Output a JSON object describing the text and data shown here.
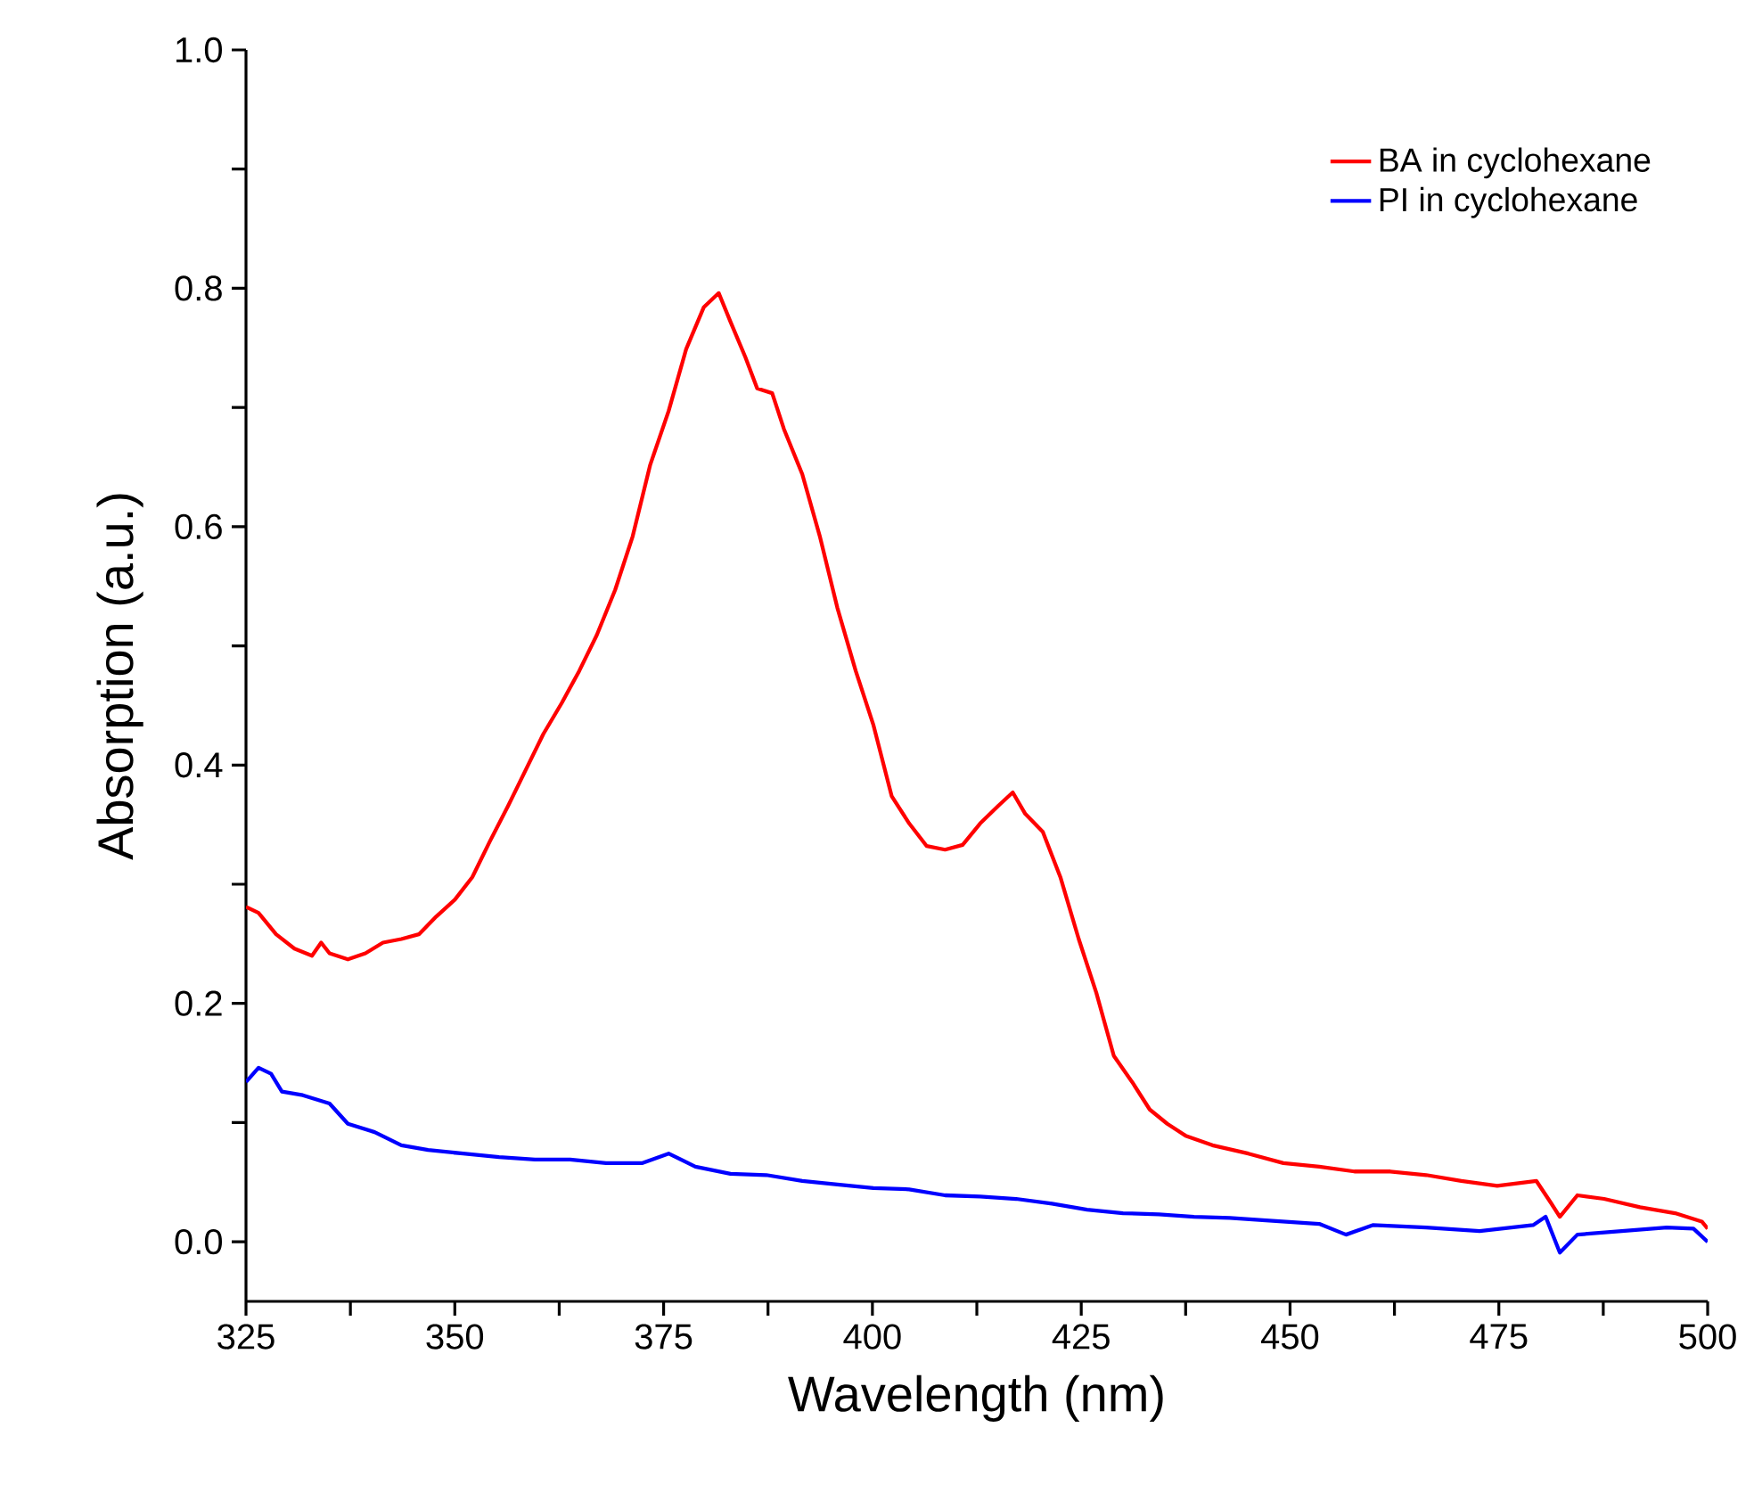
{
  "chart_data": {
    "type": "line",
    "xlabel": "Wavelength (nm)",
    "ylabel": "Absorption (a.u.)",
    "xlim": [
      325,
      500
    ],
    "ylim": [
      -0.05,
      1.0
    ],
    "xticks": [
      325,
      {
        "value": 337.5,
        "label": null
      },
      350,
      {
        "value": 362.5,
        "label": null
      },
      375,
      {
        "value": 387.5,
        "label": null
      },
      400,
      {
        "value": 412.5,
        "label": null
      },
      425,
      {
        "value": 437.5,
        "label": null
      },
      450,
      {
        "value": 462.5,
        "label": null
      },
      475,
      {
        "value": 487.5,
        "label": null
      },
      500
    ],
    "yticks": [
      {
        "value": 0,
        "label": "0.0"
      },
      {
        "value": 0.1,
        "label": null
      },
      {
        "value": 0.2,
        "label": "0.2"
      },
      {
        "value": 0.3,
        "label": null
      },
      {
        "value": 0.4,
        "label": "0.4"
      },
      {
        "value": 0.5,
        "label": null
      },
      {
        "value": 0.6,
        "label": "0.6"
      },
      {
        "value": 0.7,
        "label": null
      },
      {
        "value": 0.8,
        "label": "0.8"
      },
      {
        "value": 0.9,
        "label": null
      },
      {
        "value": 1.0,
        "label": "1.0"
      }
    ],
    "legend": "top right",
    "grid": false,
    "marker": "none",
    "line_style": "solid",
    "series": [
      {
        "name": "BA in cyclohexane",
        "color": "#ff0000",
        "x": [
          325,
          326.5,
          328.6,
          330.8,
          332.9,
          334,
          335,
          337.2,
          339.3,
          341.4,
          343.6,
          345.7,
          347.8,
          350,
          352.1,
          354.2,
          356.4,
          358.5,
          360.6,
          362.8,
          364.9,
          367,
          369.2,
          371.3,
          373.4,
          375.6,
          377.7,
          379.8,
          381.6,
          383,
          384.8,
          386.2,
          388,
          389.4,
          391.6,
          393.7,
          395.8,
          398,
          400.1,
          402.3,
          404.4,
          406.5,
          408.7,
          410.8,
          412.9,
          415.1,
          416.8,
          418.3,
          420.4,
          422.5,
          424.7,
          426.8,
          428.9,
          431.1,
          433.2,
          435.3,
          437.5,
          440.7,
          445,
          449.2,
          453.5,
          457.7,
          462,
          466.3,
          470.5,
          474.8,
          479.5,
          481.2,
          482.3,
          484.4,
          487.6,
          491.9,
          496.1,
          499.3,
          500
        ],
        "values": [
          0.281,
          0.276,
          0.258,
          0.246,
          0.24,
          0.251,
          0.242,
          0.237,
          0.242,
          0.251,
          0.254,
          0.258,
          0.273,
          0.287,
          0.306,
          0.336,
          0.366,
          0.396,
          0.426,
          0.452,
          0.479,
          0.509,
          0.547,
          0.592,
          0.652,
          0.697,
          0.749,
          0.784,
          0.796,
          0.772,
          0.742,
          0.716,
          0.712,
          0.682,
          0.644,
          0.592,
          0.532,
          0.479,
          0.434,
          0.374,
          0.351,
          0.332,
          0.329,
          0.333,
          0.351,
          0.366,
          0.377,
          0.359,
          0.344,
          0.306,
          0.254,
          0.209,
          0.156,
          0.134,
          0.111,
          0.099,
          0.089,
          0.081,
          0.074,
          0.066,
          0.063,
          0.059,
          0.059,
          0.056,
          0.051,
          0.047,
          0.051,
          0.033,
          0.021,
          0.039,
          0.036,
          0.029,
          0.024,
          0.017,
          0.011
        ]
      },
      {
        "name": "PI in cyclohexane",
        "color": "#0000ff",
        "x": [
          325,
          326.5,
          328,
          329.3,
          331.8,
          335,
          337.2,
          340.4,
          343.6,
          346.8,
          351,
          355.3,
          359.6,
          363.8,
          368.1,
          372.4,
          375.6,
          378.8,
          383,
          387.3,
          391.6,
          395.8,
          400.1,
          404.4,
          408.7,
          412.9,
          417.2,
          421.5,
          425.7,
          430,
          434.3,
          438.5,
          442.8,
          447.1,
          453.5,
          456.7,
          459.9,
          466.3,
          472.7,
          479.1,
          480.6,
          482.3,
          484.4,
          489.7,
          495.1,
          498.3,
          500
        ],
        "values": [
          0.134,
          0.146,
          0.141,
          0.126,
          0.123,
          0.116,
          0.099,
          0.092,
          0.081,
          0.077,
          0.074,
          0.071,
          0.069,
          0.069,
          0.066,
          0.066,
          0.074,
          0.063,
          0.057,
          0.056,
          0.051,
          0.048,
          0.045,
          0.044,
          0.039,
          0.038,
          0.036,
          0.032,
          0.027,
          0.024,
          0.023,
          0.021,
          0.02,
          0.018,
          0.015,
          0.006,
          0.014,
          0.012,
          0.009,
          0.014,
          0.021,
          -0.009,
          0.006,
          0.009,
          0.012,
          0.011,
          0.0
        ]
      }
    ]
  }
}
